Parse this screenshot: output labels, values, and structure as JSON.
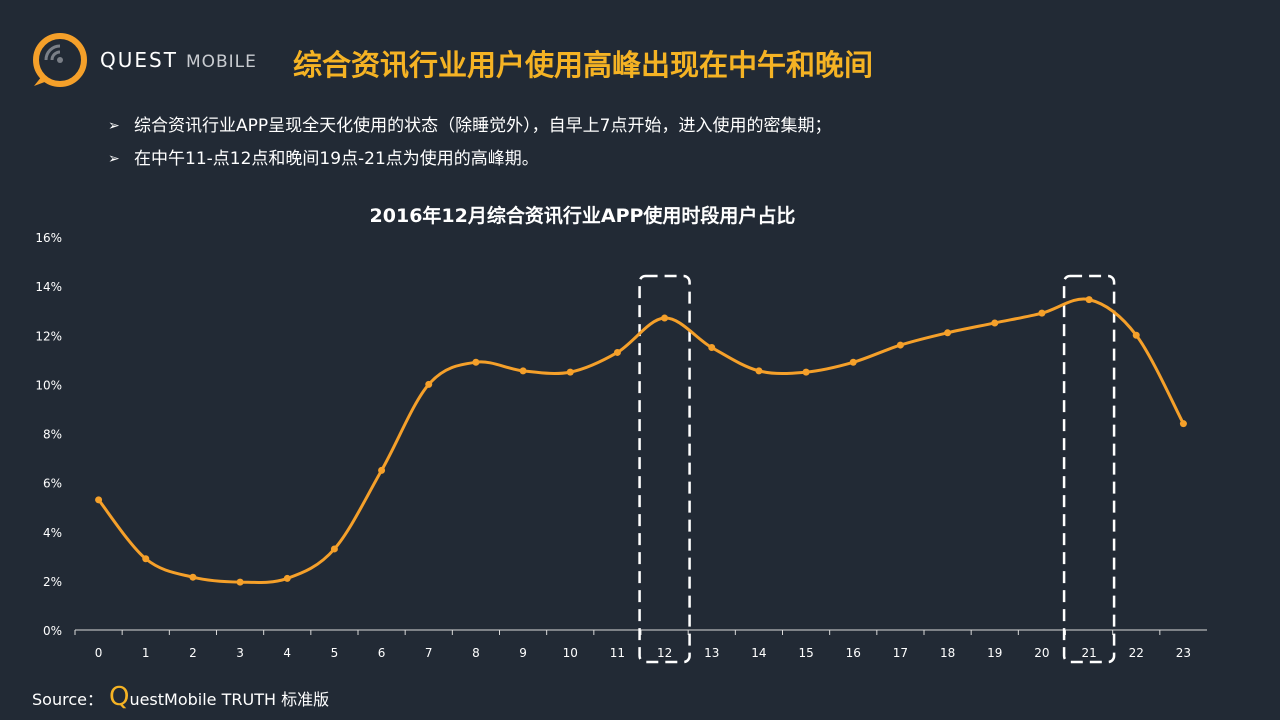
{
  "header": {
    "logo_main": "QUEST",
    "logo_sub": "MOBILE",
    "title": "综合资讯行业用户使用高峰出现在中午和晚间"
  },
  "bullets": [
    "综合资讯行业APP呈现全天化使用的状态（除睡觉外），自早上7点开始，进入使用的密集期；",
    "在中午11-点12点和晚间19点-21点为使用的高峰期。"
  ],
  "source": {
    "prefix": "Source：",
    "q": "Q",
    "rest": "uestMobile TRUTH 标准版"
  },
  "colors": {
    "background": "#222a35",
    "accent": "#f5b324",
    "line": "#f5a02a"
  },
  "chart_data": {
    "type": "line",
    "title": "2016年12月综合资讯行业APP使用时段用户占比",
    "categories": [
      "0",
      "1",
      "2",
      "3",
      "4",
      "5",
      "6",
      "7",
      "8",
      "9",
      "10",
      "11",
      "12",
      "13",
      "14",
      "15",
      "16",
      "17",
      "18",
      "19",
      "20",
      "21",
      "22",
      "23"
    ],
    "series": [
      {
        "values": [
          5.3,
          2.9,
          2.15,
          1.95,
          2.1,
          3.3,
          6.5,
          10.0,
          10.9,
          10.55,
          10.5,
          11.3,
          12.7,
          11.5,
          10.55,
          10.5,
          10.9,
          11.6,
          12.1,
          12.5,
          12.9,
          13.45,
          12.0,
          8.4
        ]
      }
    ],
    "ylim": [
      0,
      16
    ],
    "yticks": [
      "0%",
      "2%",
      "4%",
      "6%",
      "8%",
      "10%",
      "12%",
      "14%",
      "16%"
    ],
    "highlight_categories": [
      "12",
      "21"
    ],
    "grid": false,
    "legend": "none"
  }
}
